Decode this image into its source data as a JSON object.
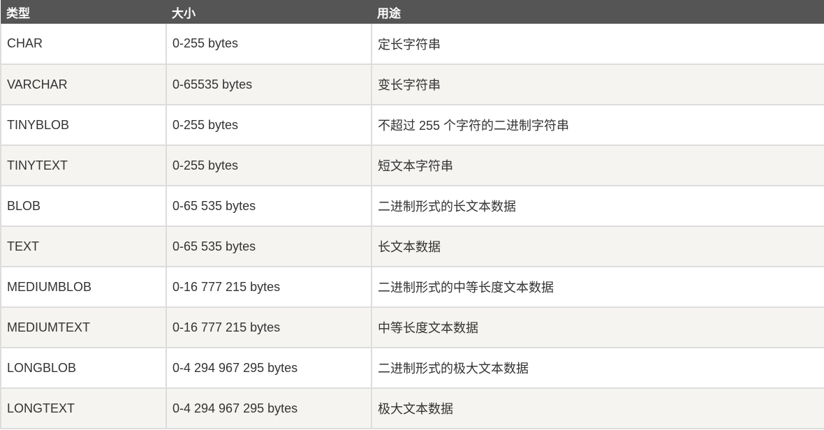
{
  "colors": {
    "header_bg": "#555555",
    "header_text": "#ffffff",
    "row_alt_bg": "#f5f4f1",
    "border": "#dddddd",
    "text": "#333333"
  },
  "headers": [
    "类型",
    "大小",
    "用途"
  ],
  "rows": [
    [
      "CHAR",
      "0-255 bytes",
      "定长字符串"
    ],
    [
      "VARCHAR",
      "0-65535 bytes",
      "变长字符串"
    ],
    [
      "TINYBLOB",
      "0-255 bytes",
      "不超过 255 个字符的二进制字符串"
    ],
    [
      "TINYTEXT",
      "0-255 bytes",
      "短文本字符串"
    ],
    [
      "BLOB",
      "0-65 535 bytes",
      "二进制形式的长文本数据"
    ],
    [
      "TEXT",
      "0-65 535 bytes",
      "长文本数据"
    ],
    [
      "MEDIUMBLOB",
      "0-16 777 215 bytes",
      "二进制形式的中等长度文本数据"
    ],
    [
      "MEDIUMTEXT",
      "0-16 777 215 bytes",
      "中等长度文本数据"
    ],
    [
      "LONGBLOB",
      "0-4 294 967 295 bytes",
      "二进制形式的极大文本数据"
    ],
    [
      "LONGTEXT",
      "0-4 294 967 295 bytes",
      "极大文本数据"
    ]
  ]
}
